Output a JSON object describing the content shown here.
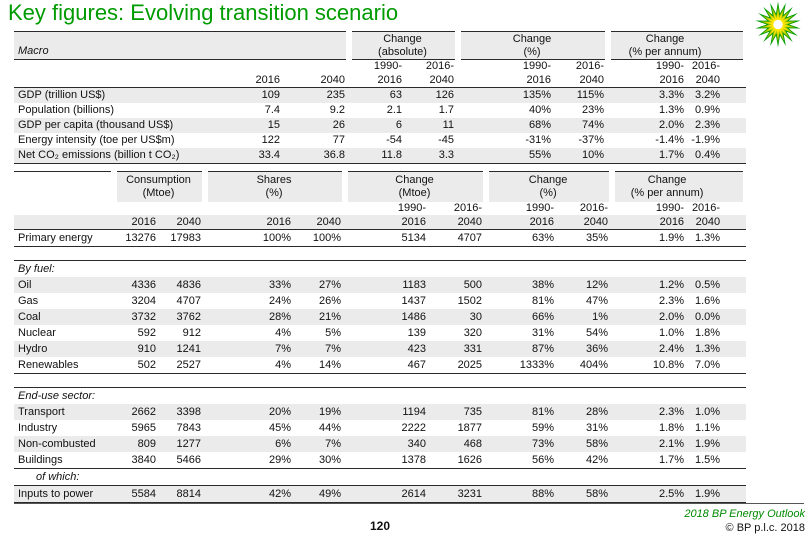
{
  "title": "Key figures: Evolving transition scenario",
  "colors": {
    "title_green": "#009b00",
    "footer_green": "#008a00",
    "stripe_gray": "#ebebeb"
  },
  "logo": {
    "icon": "bp-helios-logo",
    "colors": {
      "outer": "#009b00",
      "mid": "#9ec400",
      "inner": "#ffe600",
      "center": "#ffffff"
    }
  },
  "columns": {
    "years": [
      "2016",
      "2040"
    ],
    "range_top": [
      "1990-",
      "2016-"
    ],
    "range_bottom": [
      "2016",
      "2040"
    ]
  },
  "macro_table": {
    "section_label": "Macro",
    "groups": [
      {
        "label": "Change",
        "unit": "(absolute)"
      },
      {
        "label": "Change",
        "unit": "(%)"
      },
      {
        "label": "Change",
        "unit": "(% per annum)"
      }
    ],
    "rows": [
      {
        "label": "GDP (trillion US$)",
        "values": [
          "109",
          "235",
          "63",
          "126",
          "135%",
          "115%",
          "3.3%",
          "3.2%"
        ]
      },
      {
        "label": "Population (billions)",
        "values": [
          "7.4",
          "9.2",
          "2.1",
          "1.7",
          "40%",
          "23%",
          "1.3%",
          "0.9%"
        ]
      },
      {
        "label": "GDP per capita (thousand US$)",
        "values": [
          "15",
          "26",
          "6",
          "11",
          "68%",
          "74%",
          "2.0%",
          "2.3%"
        ]
      },
      {
        "label": "Energy intensity (toe per US$m)",
        "values": [
          "122",
          "77",
          "-54",
          "-45",
          "-31%",
          "-37%",
          "-1.4%",
          "-1.9%"
        ]
      },
      {
        "label": "Net CO₂ emissions (billion t CO₂)",
        "values": [
          "33.4",
          "36.8",
          "11.8",
          "3.3",
          "55%",
          "10%",
          "1.7%",
          "0.4%"
        ]
      }
    ]
  },
  "energy_table": {
    "groups": [
      {
        "label": "Consumption",
        "unit": "(Mtoe)"
      },
      {
        "label": "Shares",
        "unit": "(%)"
      },
      {
        "label": "Change",
        "unit": "(Mtoe)"
      },
      {
        "label": "Change",
        "unit": "(%)"
      },
      {
        "label": "Change",
        "unit": "(% per annum)"
      }
    ],
    "primary_rows": [
      {
        "label": "Primary energy",
        "values": [
          "13276",
          "17983",
          "100%",
          "100%",
          "5134",
          "4707",
          "63%",
          "35%",
          "1.9%",
          "1.3%"
        ]
      }
    ],
    "by_fuel_heading": "By fuel:",
    "fuel_rows": [
      {
        "label": "Oil",
        "values": [
          "4336",
          "4836",
          "33%",
          "27%",
          "1183",
          "500",
          "38%",
          "12%",
          "1.2%",
          "0.5%"
        ]
      },
      {
        "label": "Gas",
        "values": [
          "3204",
          "4707",
          "24%",
          "26%",
          "1437",
          "1502",
          "81%",
          "47%",
          "2.3%",
          "1.6%"
        ]
      },
      {
        "label": "Coal",
        "values": [
          "3732",
          "3762",
          "28%",
          "21%",
          "1486",
          "30",
          "66%",
          "1%",
          "2.0%",
          "0.0%"
        ]
      },
      {
        "label": "Nuclear",
        "values": [
          "592",
          "912",
          "4%",
          "5%",
          "139",
          "320",
          "31%",
          "54%",
          "1.0%",
          "1.8%"
        ]
      },
      {
        "label": "Hydro",
        "values": [
          "910",
          "1241",
          "7%",
          "7%",
          "423",
          "331",
          "87%",
          "36%",
          "2.4%",
          "1.3%"
        ]
      },
      {
        "label": "Renewables",
        "values": [
          "502",
          "2527",
          "4%",
          "14%",
          "467",
          "2025",
          "1333%",
          "404%",
          "10.8%",
          "7.0%"
        ]
      }
    ],
    "end_use_heading": "End-use sector:",
    "end_use_rows": [
      {
        "label": "Transport",
        "values": [
          "2662",
          "3398",
          "20%",
          "19%",
          "1194",
          "735",
          "81%",
          "28%",
          "2.3%",
          "1.0%"
        ]
      },
      {
        "label": "Industry",
        "values": [
          "5965",
          "7843",
          "45%",
          "44%",
          "2222",
          "1877",
          "59%",
          "31%",
          "1.8%",
          "1.1%"
        ]
      },
      {
        "label": "Non-combusted",
        "values": [
          "809",
          "1277",
          "6%",
          "7%",
          "340",
          "468",
          "73%",
          "58%",
          "2.1%",
          "1.9%"
        ]
      },
      {
        "label": "Buildings",
        "values": [
          "3840",
          "5466",
          "29%",
          "30%",
          "1378",
          "1626",
          "56%",
          "42%",
          "1.7%",
          "1.5%"
        ]
      }
    ],
    "of_which_heading": "of which:",
    "of_which_rows": [
      {
        "label": "Inputs to power",
        "values": [
          "5584",
          "8814",
          "42%",
          "49%",
          "2614",
          "3231",
          "88%",
          "58%",
          "2.5%",
          "1.9%"
        ]
      }
    ]
  },
  "footer": {
    "page_number": "120",
    "brand_line": "2018 BP Energy Outlook",
    "copyright": "© BP p.l.c. 2018"
  }
}
